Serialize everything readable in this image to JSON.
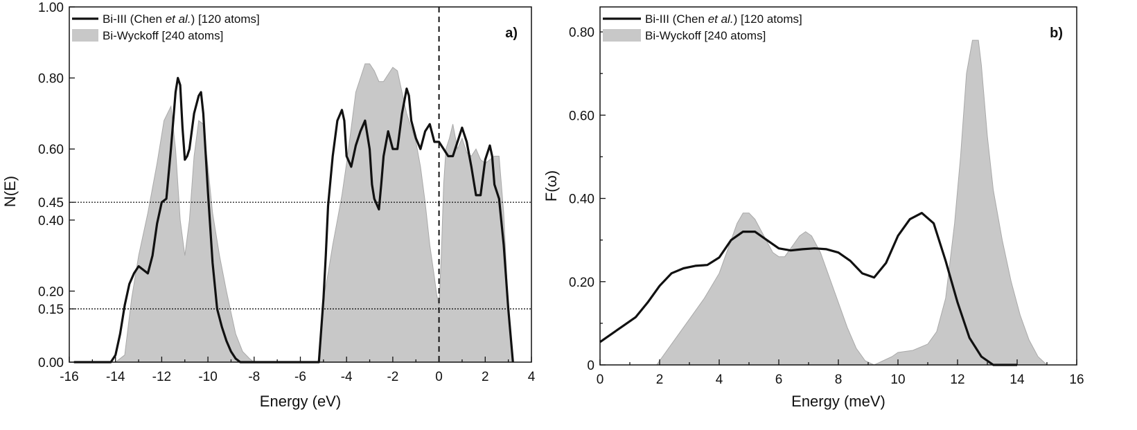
{
  "chart_data": [
    {
      "type": "line",
      "panel_label": "a)",
      "xlabel": "Energy (eV)",
      "ylabel": "N(E)",
      "xlim": [
        -16,
        4
      ],
      "ylim": [
        0,
        1.0
      ],
      "x_ticks": [
        -16,
        -14,
        -12,
        -10,
        -8,
        -6,
        -4,
        -2,
        0,
        2,
        4
      ],
      "x_tick_labels": [
        "-16",
        "-14",
        "-12",
        "-10",
        "-8",
        "-6",
        "-4",
        "-2",
        "0",
        "2",
        "4"
      ],
      "y_ticks": [
        0,
        0.15,
        0.2,
        0.4,
        0.45,
        0.6,
        0.8,
        1.0
      ],
      "y_tick_labels": [
        "0.00",
        "0.15",
        "0.20",
        "0.40",
        "0.45",
        "0.60",
        "0.80",
        "1.00"
      ],
      "legend_position": "top-left",
      "legend": [
        {
          "pre": "Bi-III (Chen ",
          "italic": "et al.",
          "post": ") [120 atoms]",
          "style": "line",
          "color": "#111111"
        },
        {
          "pre": "Bi-Wyckoff [240 atoms]",
          "italic": "",
          "post": "",
          "style": "area",
          "color": "#c8c8c8"
        }
      ],
      "reference_lines": [
        {
          "orientation": "horizontal",
          "value": 0.45,
          "style": "dotted"
        },
        {
          "orientation": "horizontal",
          "value": 0.15,
          "style": "dotted"
        },
        {
          "orientation": "vertical",
          "value": 0,
          "style": "dashed"
        }
      ],
      "series": [
        {
          "name": "Bi-Wyckoff [240 atoms]",
          "style": "area",
          "x": [
            -14.0,
            -13.6,
            -13.3,
            -13.0,
            -12.6,
            -12.2,
            -11.9,
            -11.6,
            -11.4,
            -11.2,
            -11.0,
            -10.8,
            -10.6,
            -10.4,
            -10.2,
            -10.0,
            -9.8,
            -9.5,
            -9.2,
            -9.0,
            -8.8,
            -8.5,
            -8.2,
            -8.0,
            -7.8,
            -5.2,
            -5.1,
            -5.0,
            -4.8,
            -4.6,
            -4.4,
            -4.2,
            -4.0,
            -3.8,
            -3.6,
            -3.4,
            -3.2,
            -3.0,
            -2.8,
            -2.6,
            -2.4,
            -2.2,
            -2.0,
            -1.8,
            -1.6,
            -1.4,
            -1.2,
            -1.0,
            -0.8,
            -0.6,
            -0.4,
            -0.2,
            -0.1,
            0.0,
            0.1,
            0.2,
            0.3,
            0.45,
            0.6,
            0.8,
            1.0,
            1.2,
            1.4,
            1.6,
            1.8,
            2.0,
            2.2,
            2.4,
            2.6,
            2.8,
            3.0,
            3.2
          ],
          "y": [
            0.0,
            0.02,
            0.18,
            0.3,
            0.42,
            0.56,
            0.68,
            0.72,
            0.6,
            0.4,
            0.3,
            0.4,
            0.58,
            0.68,
            0.67,
            0.55,
            0.42,
            0.3,
            0.2,
            0.14,
            0.08,
            0.03,
            0.01,
            0.0,
            0.0,
            0.0,
            0.1,
            0.18,
            0.25,
            0.33,
            0.4,
            0.47,
            0.56,
            0.66,
            0.76,
            0.8,
            0.84,
            0.84,
            0.82,
            0.79,
            0.79,
            0.81,
            0.83,
            0.82,
            0.76,
            0.7,
            0.66,
            0.62,
            0.55,
            0.45,
            0.33,
            0.24,
            0.19,
            0.16,
            0.3,
            0.5,
            0.6,
            0.63,
            0.67,
            0.6,
            0.63,
            0.59,
            0.58,
            0.6,
            0.57,
            0.56,
            0.57,
            0.58,
            0.58,
            0.42,
            0.15,
            0.0
          ]
        },
        {
          "name": "Bi-III (Chen et al.) [120 atoms]",
          "style": "line",
          "x": [
            -15.8,
            -14.2,
            -14.0,
            -13.8,
            -13.6,
            -13.4,
            -13.2,
            -13.0,
            -12.8,
            -12.6,
            -12.4,
            -12.2,
            -12.0,
            -11.8,
            -11.6,
            -11.4,
            -11.3,
            -11.2,
            -11.1,
            -11.0,
            -10.9,
            -10.8,
            -10.6,
            -10.4,
            -10.3,
            -10.2,
            -10.0,
            -9.8,
            -9.6,
            -9.4,
            -9.2,
            -9.0,
            -8.8,
            -8.6,
            -8.4,
            -8.0,
            -5.4,
            -5.2,
            -5.0,
            -4.9,
            -4.8,
            -4.6,
            -4.4,
            -4.2,
            -4.1,
            -4.0,
            -3.8,
            -3.6,
            -3.4,
            -3.2,
            -3.0,
            -2.9,
            -2.8,
            -2.6,
            -2.5,
            -2.4,
            -2.2,
            -2.0,
            -1.8,
            -1.6,
            -1.4,
            -1.3,
            -1.2,
            -1.0,
            -0.8,
            -0.6,
            -0.4,
            -0.2,
            0.0,
            0.2,
            0.4,
            0.6,
            0.8,
            1.0,
            1.2,
            1.4,
            1.6,
            1.8,
            2.0,
            2.2,
            2.3,
            2.4,
            2.6,
            2.8,
            3.0,
            3.2
          ],
          "y": [
            0.0,
            0.0,
            0.02,
            0.08,
            0.16,
            0.22,
            0.25,
            0.27,
            0.26,
            0.25,
            0.3,
            0.39,
            0.45,
            0.46,
            0.6,
            0.76,
            0.8,
            0.78,
            0.66,
            0.57,
            0.58,
            0.6,
            0.7,
            0.75,
            0.76,
            0.7,
            0.48,
            0.28,
            0.15,
            0.1,
            0.06,
            0.03,
            0.01,
            0.0,
            0.0,
            0.0,
            0.0,
            0.0,
            0.18,
            0.3,
            0.44,
            0.58,
            0.68,
            0.71,
            0.68,
            0.58,
            0.55,
            0.61,
            0.65,
            0.68,
            0.6,
            0.5,
            0.46,
            0.43,
            0.5,
            0.58,
            0.65,
            0.6,
            0.6,
            0.7,
            0.77,
            0.75,
            0.68,
            0.63,
            0.6,
            0.65,
            0.67,
            0.62,
            0.62,
            0.6,
            0.58,
            0.58,
            0.62,
            0.66,
            0.62,
            0.55,
            0.47,
            0.47,
            0.57,
            0.61,
            0.58,
            0.5,
            0.46,
            0.33,
            0.15,
            0.0
          ]
        }
      ]
    },
    {
      "type": "line",
      "panel_label": "b)",
      "xlabel": "Energy (meV)",
      "ylabel": "F(ω)",
      "xlim": [
        0,
        16
      ],
      "ylim": [
        0,
        0.86
      ],
      "x_ticks": [
        0,
        2,
        4,
        6,
        8,
        10,
        12,
        14,
        16
      ],
      "x_tick_labels": [
        "0",
        "2",
        "4",
        "6",
        "8",
        "10",
        "12",
        "14",
        "16"
      ],
      "y_ticks": [
        0,
        0.2,
        0.4,
        0.6,
        0.8
      ],
      "y_tick_labels": [
        "0",
        "0.20",
        "0.40",
        "0.60",
        "0.80"
      ],
      "legend_position": "top-left",
      "legend": [
        {
          "pre": "Bi-III (Chen ",
          "italic": "et al.",
          "post": ") [120 atoms]",
          "style": "line",
          "color": "#111111"
        },
        {
          "pre": "Bi-Wyckoff [240 atoms]",
          "italic": "",
          "post": "",
          "style": "area",
          "color": "#c8c8c8"
        }
      ],
      "series": [
        {
          "name": "Bi-Wyckoff [240 atoms]",
          "style": "area",
          "x": [
            1.9,
            2.0,
            2.5,
            3.0,
            3.5,
            4.0,
            4.3,
            4.6,
            4.8,
            5.0,
            5.2,
            5.5,
            5.8,
            6.0,
            6.2,
            6.4,
            6.7,
            6.9,
            7.1,
            7.4,
            7.7,
            8.0,
            8.3,
            8.6,
            8.9,
            9.2,
            9.5,
            9.8,
            10.0,
            10.5,
            11.0,
            11.3,
            11.6,
            11.9,
            12.1,
            12.3,
            12.5,
            12.7,
            12.8,
            13.0,
            13.2,
            13.5,
            13.8,
            14.1,
            14.4,
            14.7,
            15.0
          ],
          "y": [
            0.0,
            0.01,
            0.06,
            0.11,
            0.16,
            0.22,
            0.28,
            0.34,
            0.365,
            0.365,
            0.35,
            0.31,
            0.27,
            0.26,
            0.26,
            0.28,
            0.31,
            0.32,
            0.31,
            0.27,
            0.21,
            0.15,
            0.09,
            0.04,
            0.01,
            0.0,
            0.01,
            0.02,
            0.03,
            0.035,
            0.05,
            0.08,
            0.16,
            0.34,
            0.5,
            0.7,
            0.78,
            0.78,
            0.72,
            0.55,
            0.42,
            0.3,
            0.2,
            0.12,
            0.06,
            0.02,
            0.0
          ]
        },
        {
          "name": "Bi-III (Chen et al.) [120 atoms]",
          "style": "line",
          "x": [
            0.0,
            0.4,
            0.8,
            1.2,
            1.6,
            2.0,
            2.4,
            2.8,
            3.2,
            3.6,
            4.0,
            4.4,
            4.8,
            5.2,
            5.6,
            6.0,
            6.4,
            6.8,
            7.2,
            7.6,
            8.0,
            8.4,
            8.8,
            9.2,
            9.6,
            10.0,
            10.4,
            10.8,
            11.2,
            11.6,
            12.0,
            12.4,
            12.8,
            13.2,
            13.6,
            14.0
          ],
          "y": [
            0.055,
            0.075,
            0.095,
            0.115,
            0.15,
            0.19,
            0.22,
            0.232,
            0.238,
            0.24,
            0.258,
            0.3,
            0.32,
            0.32,
            0.3,
            0.28,
            0.275,
            0.278,
            0.28,
            0.278,
            0.27,
            0.25,
            0.22,
            0.21,
            0.245,
            0.31,
            0.35,
            0.365,
            0.34,
            0.25,
            0.15,
            0.065,
            0.02,
            0.0,
            0.0,
            0.0
          ]
        }
      ]
    }
  ]
}
